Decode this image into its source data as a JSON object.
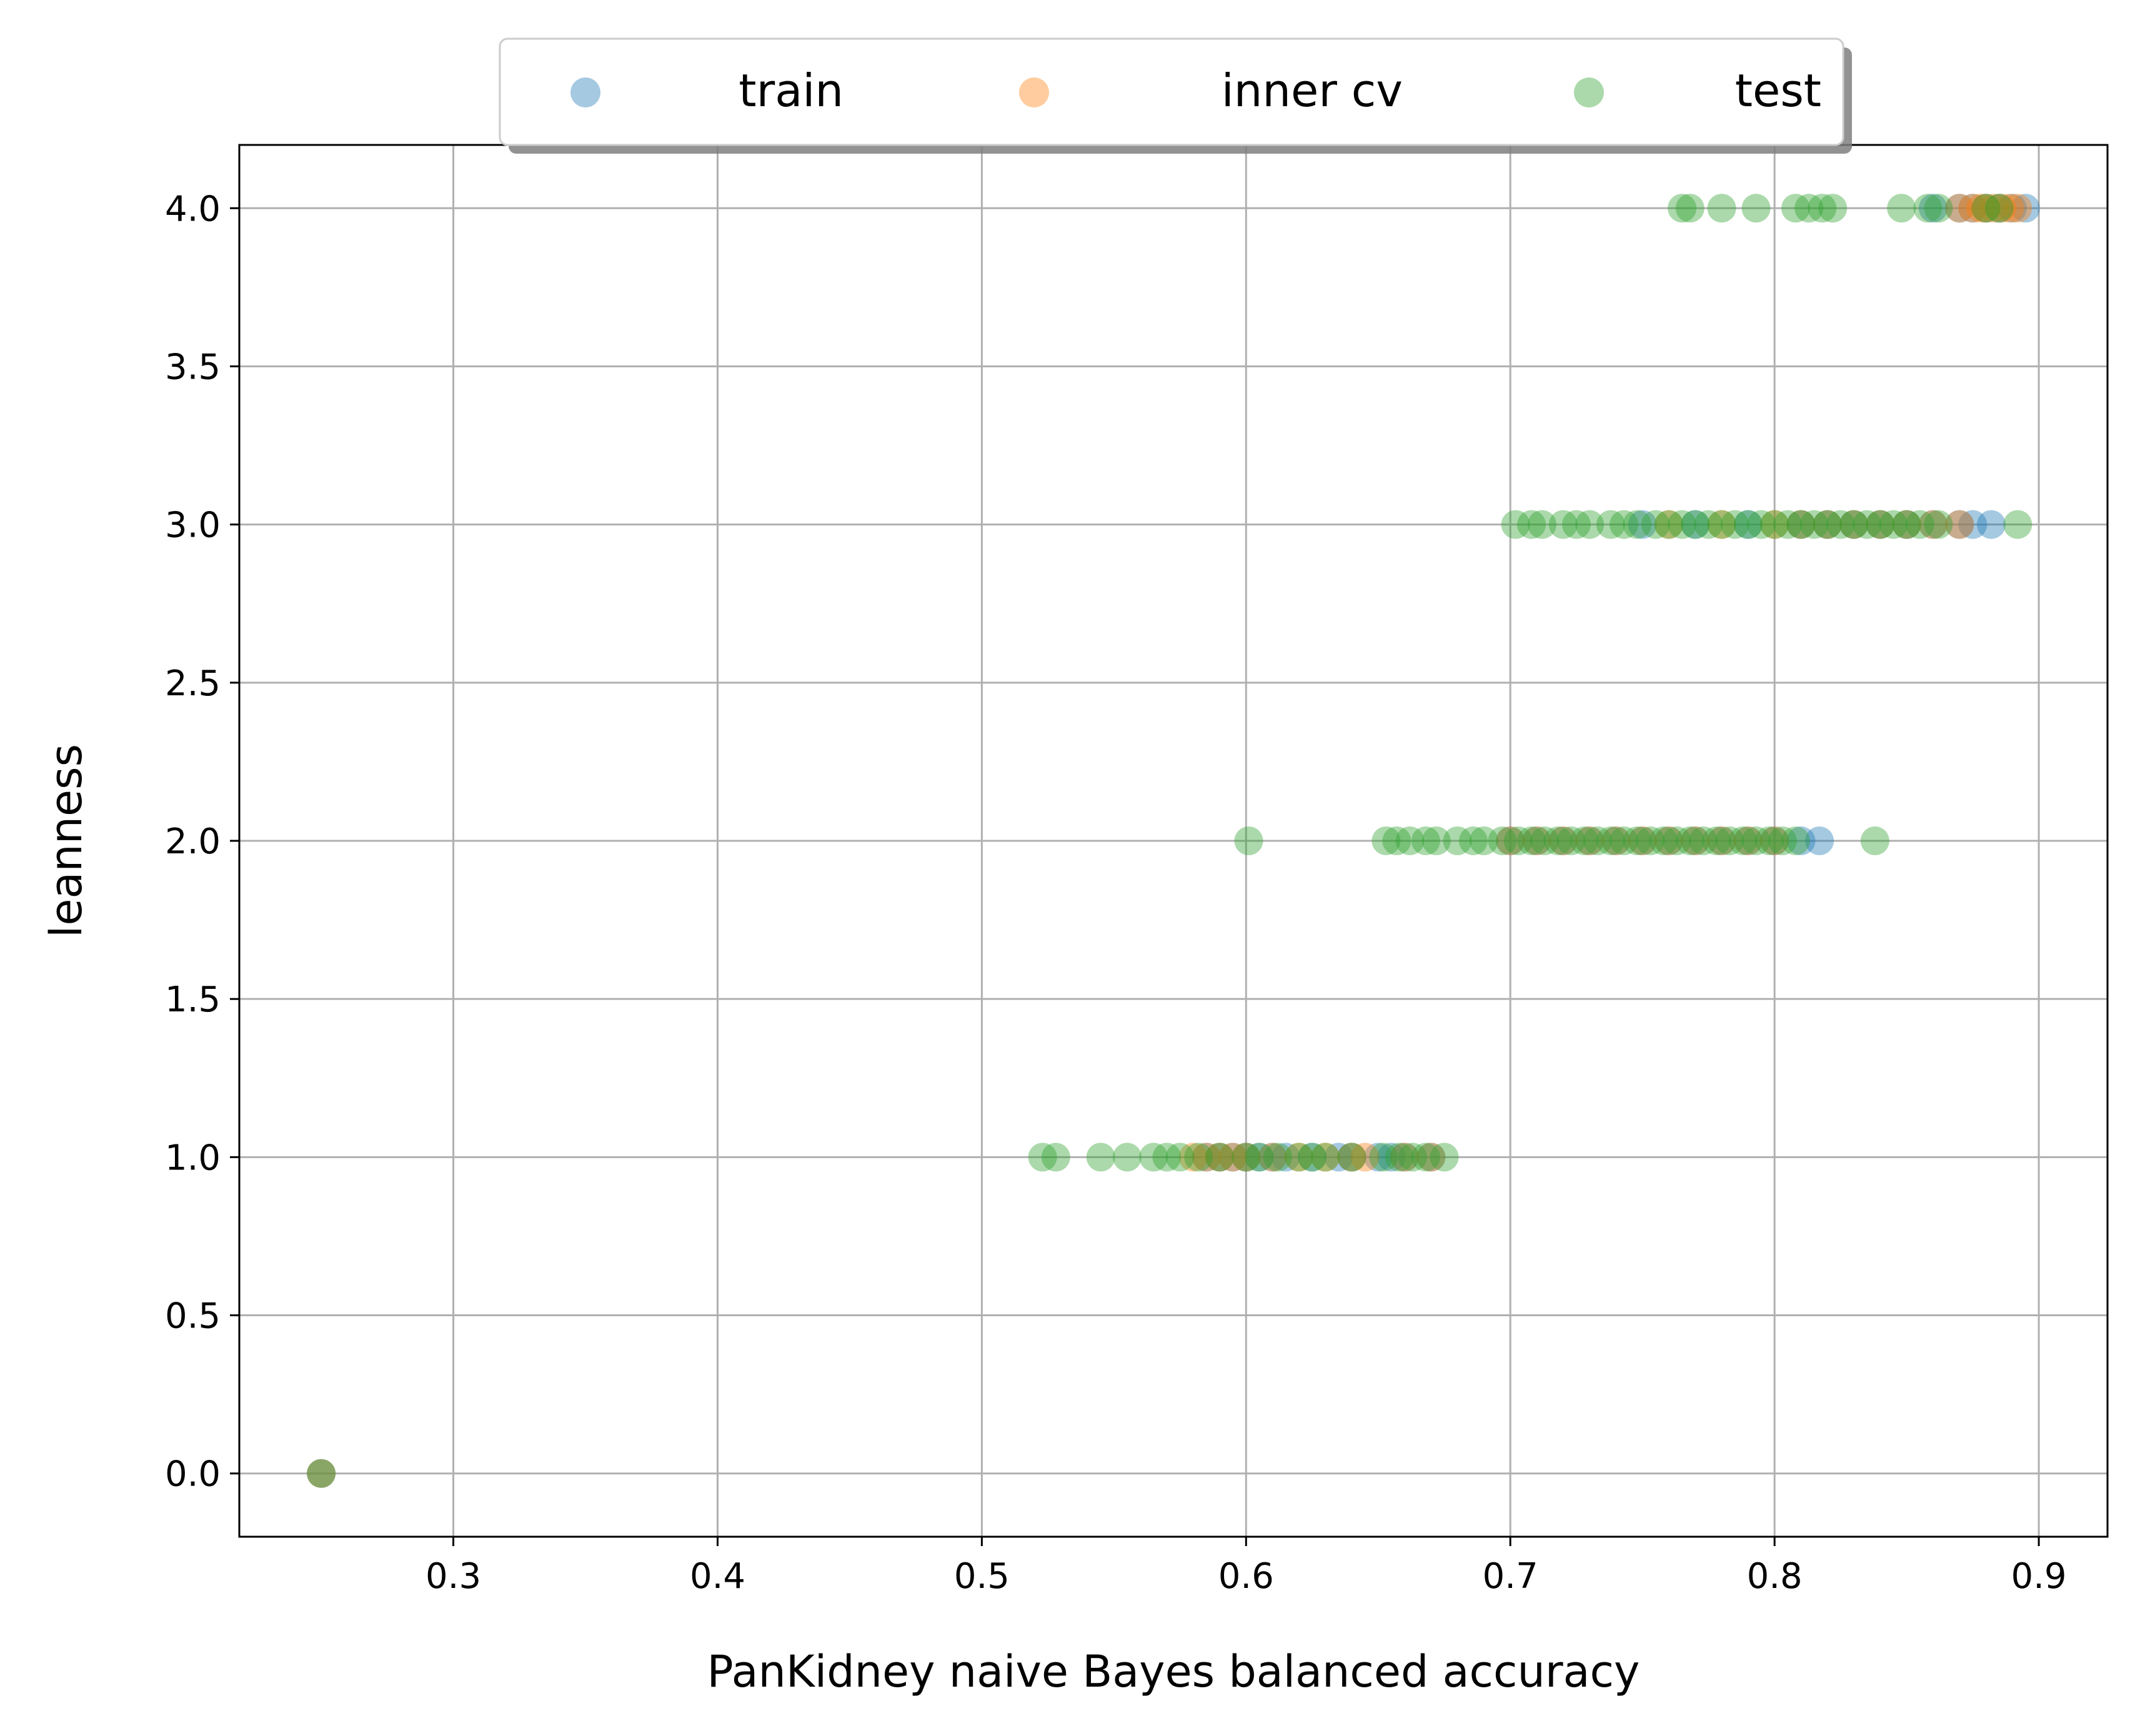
{
  "chart_data": {
    "type": "scatter",
    "title": "",
    "xlabel": "PanKidney naive Bayes balanced accuracy",
    "ylabel": "leanness",
    "xlim": [
      0.219,
      0.926
    ],
    "ylim": [
      -0.2,
      4.2
    ],
    "xticks": [
      0.3,
      0.4,
      0.5,
      0.6,
      0.7,
      0.8,
      0.9
    ],
    "xtick_labels": [
      "0.3",
      "0.4",
      "0.5",
      "0.6",
      "0.7",
      "0.8",
      "0.9"
    ],
    "yticks": [
      0.0,
      0.5,
      1.0,
      1.5,
      2.0,
      2.5,
      3.0,
      3.5,
      4.0
    ],
    "ytick_labels": [
      "0.0",
      "0.5",
      "1.0",
      "1.5",
      "2.0",
      "2.5",
      "3.0",
      "3.5",
      "4.0"
    ],
    "grid": true,
    "legend_position": "top-center",
    "series": [
      {
        "name": "train",
        "color": "#1f77b4",
        "points": [
          [
            0.25,
            0.0
          ],
          [
            0.585,
            1.0
          ],
          [
            0.59,
            1.0
          ],
          [
            0.595,
            1.0
          ],
          [
            0.6,
            1.0
          ],
          [
            0.605,
            1.0
          ],
          [
            0.61,
            1.0
          ],
          [
            0.615,
            1.0
          ],
          [
            0.625,
            1.0
          ],
          [
            0.635,
            1.0
          ],
          [
            0.64,
            1.0
          ],
          [
            0.65,
            1.0
          ],
          [
            0.655,
            1.0
          ],
          [
            0.66,
            1.0
          ],
          [
            0.67,
            1.0
          ],
          [
            0.7,
            2.0
          ],
          [
            0.71,
            2.0
          ],
          [
            0.72,
            2.0
          ],
          [
            0.73,
            2.0
          ],
          [
            0.74,
            2.0
          ],
          [
            0.75,
            2.0
          ],
          [
            0.76,
            2.0
          ],
          [
            0.77,
            2.0
          ],
          [
            0.78,
            2.0
          ],
          [
            0.79,
            2.0
          ],
          [
            0.8,
            2.0
          ],
          [
            0.81,
            2.0
          ],
          [
            0.817,
            2.0
          ],
          [
            0.75,
            3.0
          ],
          [
            0.77,
            3.0
          ],
          [
            0.79,
            3.0
          ],
          [
            0.81,
            3.0
          ],
          [
            0.82,
            3.0
          ],
          [
            0.83,
            3.0
          ],
          [
            0.84,
            3.0
          ],
          [
            0.85,
            3.0
          ],
          [
            0.86,
            3.0
          ],
          [
            0.87,
            3.0
          ],
          [
            0.875,
            3.0
          ],
          [
            0.882,
            3.0
          ],
          [
            0.86,
            4.0
          ],
          [
            0.87,
            4.0
          ],
          [
            0.875,
            4.0
          ],
          [
            0.88,
            4.0
          ],
          [
            0.885,
            4.0
          ],
          [
            0.89,
            4.0
          ],
          [
            0.895,
            4.0
          ]
        ]
      },
      {
        "name": "inner cv",
        "color": "#ff7f0e",
        "points": [
          [
            0.25,
            0.0
          ],
          [
            0.58,
            1.0
          ],
          [
            0.585,
            1.0
          ],
          [
            0.59,
            1.0
          ],
          [
            0.595,
            1.0
          ],
          [
            0.6,
            1.0
          ],
          [
            0.61,
            1.0
          ],
          [
            0.62,
            1.0
          ],
          [
            0.63,
            1.0
          ],
          [
            0.64,
            1.0
          ],
          [
            0.645,
            1.0
          ],
          [
            0.66,
            1.0
          ],
          [
            0.67,
            1.0
          ],
          [
            0.7,
            2.0
          ],
          [
            0.71,
            2.0
          ],
          [
            0.72,
            2.0
          ],
          [
            0.73,
            2.0
          ],
          [
            0.74,
            2.0
          ],
          [
            0.75,
            2.0
          ],
          [
            0.76,
            2.0
          ],
          [
            0.77,
            2.0
          ],
          [
            0.78,
            2.0
          ],
          [
            0.79,
            2.0
          ],
          [
            0.8,
            2.0
          ],
          [
            0.76,
            3.0
          ],
          [
            0.78,
            3.0
          ],
          [
            0.8,
            3.0
          ],
          [
            0.81,
            3.0
          ],
          [
            0.82,
            3.0
          ],
          [
            0.83,
            3.0
          ],
          [
            0.84,
            3.0
          ],
          [
            0.85,
            3.0
          ],
          [
            0.86,
            3.0
          ],
          [
            0.87,
            3.0
          ],
          [
            0.87,
            4.0
          ],
          [
            0.875,
            4.0
          ],
          [
            0.878,
            4.0
          ],
          [
            0.88,
            4.0
          ],
          [
            0.883,
            4.0
          ],
          [
            0.886,
            4.0
          ],
          [
            0.889,
            4.0
          ],
          [
            0.892,
            4.0
          ]
        ]
      },
      {
        "name": "test",
        "color": "#2ca02c",
        "points": [
          [
            0.25,
            0.0
          ],
          [
            0.523,
            1.0
          ],
          [
            0.528,
            1.0
          ],
          [
            0.545,
            1.0
          ],
          [
            0.555,
            1.0
          ],
          [
            0.565,
            1.0
          ],
          [
            0.57,
            1.0
          ],
          [
            0.575,
            1.0
          ],
          [
            0.582,
            1.0
          ],
          [
            0.59,
            1.0
          ],
          [
            0.6,
            1.0
          ],
          [
            0.605,
            1.0
          ],
          [
            0.612,
            1.0
          ],
          [
            0.62,
            1.0
          ],
          [
            0.625,
            1.0
          ],
          [
            0.63,
            1.0
          ],
          [
            0.64,
            1.0
          ],
          [
            0.652,
            1.0
          ],
          [
            0.658,
            1.0
          ],
          [
            0.663,
            1.0
          ],
          [
            0.668,
            1.0
          ],
          [
            0.675,
            1.0
          ],
          [
            0.601,
            2.0
          ],
          [
            0.653,
            2.0
          ],
          [
            0.657,
            2.0
          ],
          [
            0.662,
            2.0
          ],
          [
            0.668,
            2.0
          ],
          [
            0.672,
            2.0
          ],
          [
            0.68,
            2.0
          ],
          [
            0.686,
            2.0
          ],
          [
            0.69,
            2.0
          ],
          [
            0.697,
            2.0
          ],
          [
            0.703,
            2.0
          ],
          [
            0.708,
            2.0
          ],
          [
            0.713,
            2.0
          ],
          [
            0.718,
            2.0
          ],
          [
            0.723,
            2.0
          ],
          [
            0.728,
            2.0
          ],
          [
            0.733,
            2.0
          ],
          [
            0.738,
            2.0
          ],
          [
            0.743,
            2.0
          ],
          [
            0.748,
            2.0
          ],
          [
            0.753,
            2.0
          ],
          [
            0.758,
            2.0
          ],
          [
            0.763,
            2.0
          ],
          [
            0.768,
            2.0
          ],
          [
            0.773,
            2.0
          ],
          [
            0.778,
            2.0
          ],
          [
            0.783,
            2.0
          ],
          [
            0.788,
            2.0
          ],
          [
            0.793,
            2.0
          ],
          [
            0.798,
            2.0
          ],
          [
            0.803,
            2.0
          ],
          [
            0.808,
            2.0
          ],
          [
            0.838,
            2.0
          ],
          [
            0.702,
            3.0
          ],
          [
            0.708,
            3.0
          ],
          [
            0.712,
            3.0
          ],
          [
            0.72,
            3.0
          ],
          [
            0.725,
            3.0
          ],
          [
            0.73,
            3.0
          ],
          [
            0.738,
            3.0
          ],
          [
            0.743,
            3.0
          ],
          [
            0.748,
            3.0
          ],
          [
            0.755,
            3.0
          ],
          [
            0.76,
            3.0
          ],
          [
            0.765,
            3.0
          ],
          [
            0.77,
            3.0
          ],
          [
            0.775,
            3.0
          ],
          [
            0.78,
            3.0
          ],
          [
            0.785,
            3.0
          ],
          [
            0.79,
            3.0
          ],
          [
            0.795,
            3.0
          ],
          [
            0.8,
            3.0
          ],
          [
            0.805,
            3.0
          ],
          [
            0.81,
            3.0
          ],
          [
            0.815,
            3.0
          ],
          [
            0.82,
            3.0
          ],
          [
            0.825,
            3.0
          ],
          [
            0.83,
            3.0
          ],
          [
            0.835,
            3.0
          ],
          [
            0.84,
            3.0
          ],
          [
            0.845,
            3.0
          ],
          [
            0.85,
            3.0
          ],
          [
            0.855,
            3.0
          ],
          [
            0.862,
            3.0
          ],
          [
            0.892,
            3.0
          ],
          [
            0.765,
            4.0
          ],
          [
            0.768,
            4.0
          ],
          [
            0.78,
            4.0
          ],
          [
            0.793,
            4.0
          ],
          [
            0.808,
            4.0
          ],
          [
            0.813,
            4.0
          ],
          [
            0.818,
            4.0
          ],
          [
            0.822,
            4.0
          ],
          [
            0.848,
            4.0
          ],
          [
            0.858,
            4.0
          ],
          [
            0.862,
            4.0
          ],
          [
            0.88,
            4.0
          ],
          [
            0.885,
            4.0
          ]
        ]
      }
    ]
  }
}
